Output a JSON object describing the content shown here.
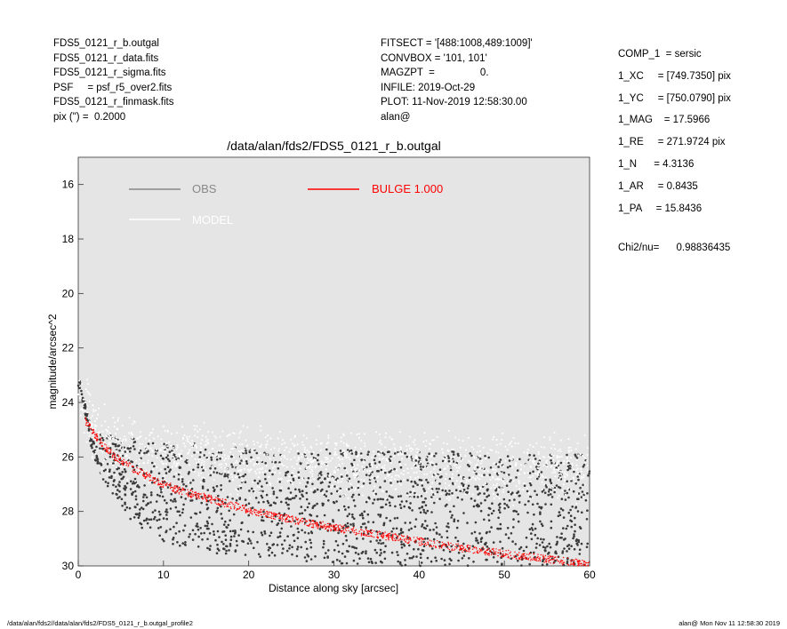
{
  "header_left": [
    "FDS5_0121_r_b.outgal",
    "FDS5_0121_r_data.fits",
    "FDS5_0121_r_sigma.fits",
    "PSF     = psf_r5_over2.fits",
    "FDS5_0121_r_finmask.fits",
    "pix (\") =  0.2000"
  ],
  "header_mid": [
    "FITSECT = '[488:1008,489:1009]'",
    "CONVBOX = '101, 101'",
    "MAGZPT  =                0.",
    "INFILE: 2019-Oct-29",
    "PLOT: 11-Nov-2019 12:58:30.00",
    "alan@"
  ],
  "header_right": [
    "COMP_1  = sersic",
    "1_XC     = [749.7350] pix",
    "1_YC     = [750.0790] pix",
    "1_MAG    = 17.5966",
    "1_RE     = 271.9724 pix",
    "1_N      = 4.3136",
    "1_AR     = 0.8435",
    "1_PA     = 15.8436"
  ],
  "chi": "Chi2/nu=      0.98836435",
  "footer": {
    "left": "/data/alan/fds2//data/alan/fds2/FDS5_0121_r_b.outgal_profile2",
    "right": "alan@   Mon Nov 11 12:58:30 2019"
  },
  "chart_data": {
    "type": "scatter",
    "title": "/data/alan/fds2/FDS5_0121_r_b.outgal",
    "xlabel": "Distance along sky [arcsec]",
    "ylabel": "magnitude/arcsec^2",
    "xlim": [
      0,
      60
    ],
    "ylim": [
      30,
      15
    ],
    "x_ticks": [
      0,
      10,
      20,
      30,
      40,
      50,
      60
    ],
    "y_ticks": [
      16,
      18,
      20,
      22,
      24,
      26,
      28,
      30
    ],
    "grid": false,
    "background": "#e5e5e5",
    "legend": [
      {
        "label": "OBS",
        "color": "#888888",
        "label_color": "#888888"
      },
      {
        "label": "MODEL",
        "color": "#ffffff",
        "label_color": "#ffffff"
      },
      {
        "label": "BULGE  1.000",
        "color": "#ff0000",
        "label_color": "#ff0000"
      }
    ],
    "series": [
      {
        "name": "OBS",
        "color": "#3a3a3a",
        "x": [
          0.2,
          0.4,
          0.6,
          0.8,
          1.0,
          1.3,
          1.6,
          2.0,
          2.5,
          3.0,
          3.5,
          4.0,
          5.0,
          6.0,
          8.0,
          10.0,
          12.0,
          15.0,
          20.0,
          25.0,
          30.0,
          35.0,
          40.0,
          45.0,
          50.0,
          55.0,
          60.0
        ],
        "y": [
          23.4,
          23.7,
          24.0,
          24.3,
          24.6,
          25.0,
          25.3,
          25.6,
          25.8,
          26.0,
          26.2,
          26.3,
          26.6,
          26.8,
          27.1,
          27.3,
          27.4,
          27.5,
          27.7,
          27.8,
          27.8,
          27.9,
          27.9,
          27.9,
          28.0,
          28.0,
          28.0
        ],
        "spread": [
          0.2,
          0.2,
          0.2,
          0.3,
          0.3,
          0.4,
          0.5,
          0.6,
          0.7,
          0.9,
          1.0,
          1.1,
          1.3,
          1.5,
          1.7,
          1.8,
          1.9,
          2.0,
          2.0,
          2.0,
          2.1,
          2.1,
          2.1,
          2.1,
          2.1,
          2.1,
          2.1
        ]
      },
      {
        "name": "MODEL",
        "color": "#ffffff",
        "x": [
          0.5,
          1,
          2,
          3,
          4,
          5,
          6,
          8,
          10,
          15,
          20,
          25,
          30,
          35,
          40,
          45,
          50,
          55,
          60
        ],
        "y": [
          24.0,
          24.4,
          25.0,
          25.3,
          25.5,
          25.65,
          25.75,
          25.85,
          25.95,
          26.05,
          26.15,
          26.2,
          26.25,
          26.3,
          26.35,
          26.35,
          26.4,
          26.4,
          26.45
        ]
      },
      {
        "name": "BULGE  1.000",
        "color": "#ff0000",
        "x": [
          1,
          2,
          3,
          4,
          5,
          6,
          8,
          10,
          12,
          15,
          20,
          25,
          30,
          35,
          40,
          45,
          50,
          55,
          60
        ],
        "y": [
          24.7,
          25.2,
          25.6,
          25.9,
          26.15,
          26.35,
          26.7,
          27.0,
          27.25,
          27.5,
          27.95,
          28.3,
          28.6,
          28.85,
          29.1,
          29.35,
          29.55,
          29.75,
          29.95
        ]
      }
    ]
  }
}
